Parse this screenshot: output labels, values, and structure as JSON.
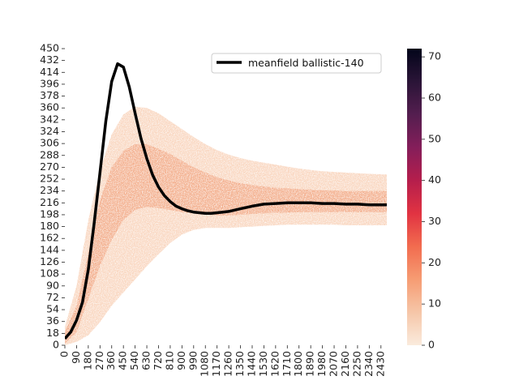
{
  "chart_data": {
    "type": "heatmap",
    "title": "",
    "xlabel": "",
    "ylabel": "",
    "x_ticks": [
      "0",
      "90",
      "180",
      "270",
      "360",
      "450",
      "540",
      "630",
      "720",
      "810",
      "900",
      "990",
      "1080",
      "1170",
      "1260",
      "1350",
      "1440",
      "1530",
      "1620",
      "1710",
      "1800",
      "1890",
      "1980",
      "2070",
      "2160",
      "2250",
      "2340",
      "2430"
    ],
    "y_ticks": [
      "0",
      "18",
      "36",
      "54",
      "72",
      "90",
      "108",
      "126",
      "144",
      "162",
      "180",
      "198",
      "216",
      "234",
      "252",
      "270",
      "288",
      "306",
      "324",
      "342",
      "360",
      "378",
      "396",
      "414",
      "432",
      "450"
    ],
    "xlim": [
      0,
      2475
    ],
    "ylim": [
      0,
      450
    ],
    "colorbar": {
      "ticks": [
        "0",
        "10",
        "20",
        "30",
        "40",
        "50",
        "60",
        "70"
      ],
      "range": [
        0,
        72
      ],
      "colors": [
        "#faebdd",
        "#f6c6a8",
        "#f69c73",
        "#f26c4f",
        "#e13342",
        "#b51e4c",
        "#841e5a",
        "#541e4f",
        "#2a1437",
        "#03051a"
      ]
    },
    "heat_band": {
      "x": [
        0,
        90,
        180,
        270,
        360,
        450,
        540,
        630,
        720,
        810,
        900,
        990,
        1080,
        1170,
        1260,
        1350,
        1440,
        1530,
        1620,
        1710,
        1800,
        1890,
        1980,
        2070,
        2160,
        2250,
        2340,
        2475
      ],
      "upper": [
        28,
        90,
        190,
        265,
        320,
        350,
        362,
        360,
        352,
        340,
        328,
        316,
        305,
        296,
        289,
        284,
        280,
        277,
        274,
        271,
        268,
        266,
        264,
        263,
        262,
        261,
        260,
        259
      ],
      "lower": [
        0,
        5,
        15,
        35,
        60,
        80,
        100,
        120,
        138,
        155,
        168,
        175,
        178,
        178,
        178,
        179,
        180,
        181,
        182,
        183,
        183,
        183,
        183,
        183,
        182,
        182,
        182,
        182
      ],
      "core_upper": [
        20,
        60,
        140,
        220,
        270,
        295,
        305,
        305,
        298,
        290,
        280,
        270,
        262,
        255,
        250,
        246,
        243,
        241,
        239,
        238,
        237,
        236,
        235,
        235,
        234,
        234,
        234,
        234
      ],
      "core_lower": [
        2,
        20,
        70,
        120,
        160,
        190,
        205,
        210,
        208,
        205,
        202,
        200,
        198,
        197,
        197,
        198,
        199,
        200,
        201,
        201,
        202,
        202,
        202,
        202,
        202,
        202,
        202,
        202
      ]
    },
    "series": [
      {
        "name": "meanfield ballistic-140",
        "color": "#000000",
        "x": [
          0,
          45,
          90,
          135,
          180,
          225,
          270,
          315,
          360,
          405,
          450,
          495,
          540,
          585,
          630,
          675,
          720,
          765,
          810,
          855,
          900,
          945,
          990,
          1035,
          1080,
          1125,
          1170,
          1215,
          1260,
          1350,
          1440,
          1530,
          1620,
          1710,
          1800,
          1890,
          1980,
          2070,
          2160,
          2250,
          2340,
          2475
        ],
        "y": [
          10,
          20,
          38,
          65,
          115,
          185,
          262,
          340,
          400,
          427,
          422,
          392,
          352,
          314,
          283,
          258,
          240,
          227,
          218,
          211,
          207,
          204,
          202,
          201,
          200,
          200,
          201,
          202,
          203,
          207,
          211,
          214,
          215,
          216,
          216,
          216,
          215,
          215,
          214,
          214,
          213,
          213
        ]
      }
    ],
    "legend": {
      "placement": "top-right"
    }
  }
}
